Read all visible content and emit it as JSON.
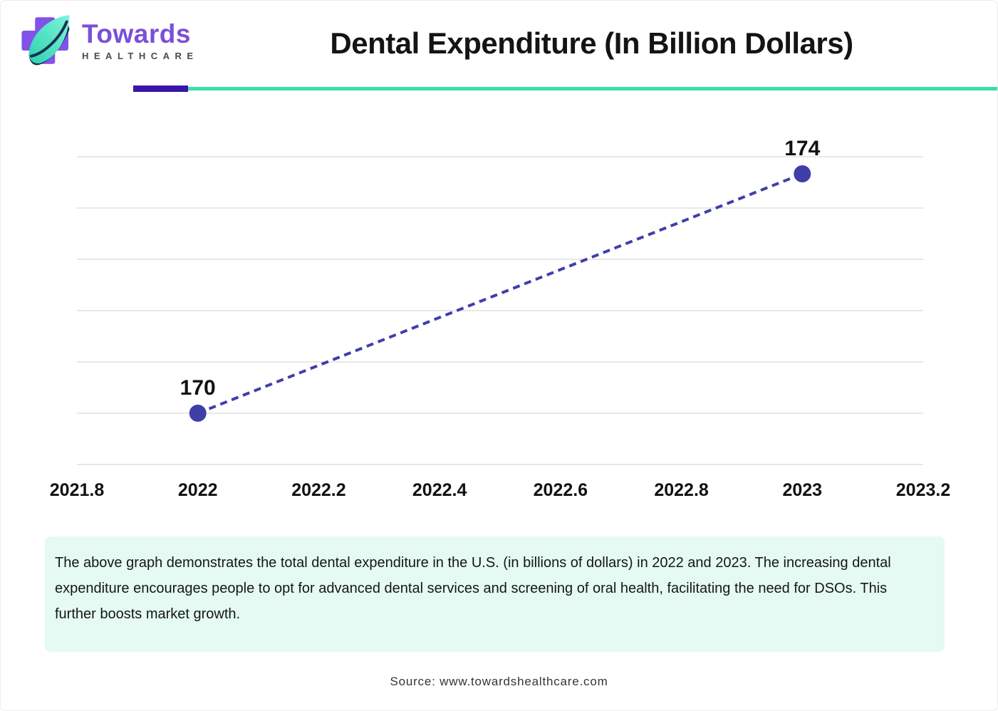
{
  "header": {
    "logo": {
      "brand": "Towards",
      "sub": "HEALTHCARE"
    },
    "title": "Dental Expenditure (In Billion Dollars)"
  },
  "chart_data": {
    "type": "line",
    "title": "Dental Expenditure (In Billion Dollars)",
    "x": [
      2022,
      2023
    ],
    "values": [
      170,
      174
    ],
    "point_labels": [
      "170",
      "174"
    ],
    "x_ticks": [
      "2021.8",
      "2022",
      "2022.2",
      "2022.4",
      "2022.6",
      "2022.8",
      "2023",
      "2023.2"
    ],
    "xlim": [
      2021.8,
      2023.2
    ],
    "ylabel": "",
    "xlabel": "",
    "line_style": "dashed",
    "marker": "circle",
    "marker_radius": 12,
    "series_color": "#3f3fa8",
    "gridlines": "horizontal",
    "legend": "none"
  },
  "description": "The above graph demonstrates the total dental expenditure in the U.S. (in billions of dollars) in 2022 and 2023. The increasing dental expenditure encourages people to opt for advanced dental services and screening of oral health, facilitating the need for DSOs. This further boosts market growth.",
  "source": "Source: www.towardshealthcare.com",
  "colors": {
    "divider_purple": "#3b16a9",
    "divider_teal": "#38dfa7",
    "series": "#3f3fa8",
    "logo_purple": "#7b4fd8",
    "logo_cross": "#8153e8",
    "leaf_teal": "#2ed1ae",
    "description_bg": "#e4faf2",
    "gridline": "#d9d9d9"
  }
}
